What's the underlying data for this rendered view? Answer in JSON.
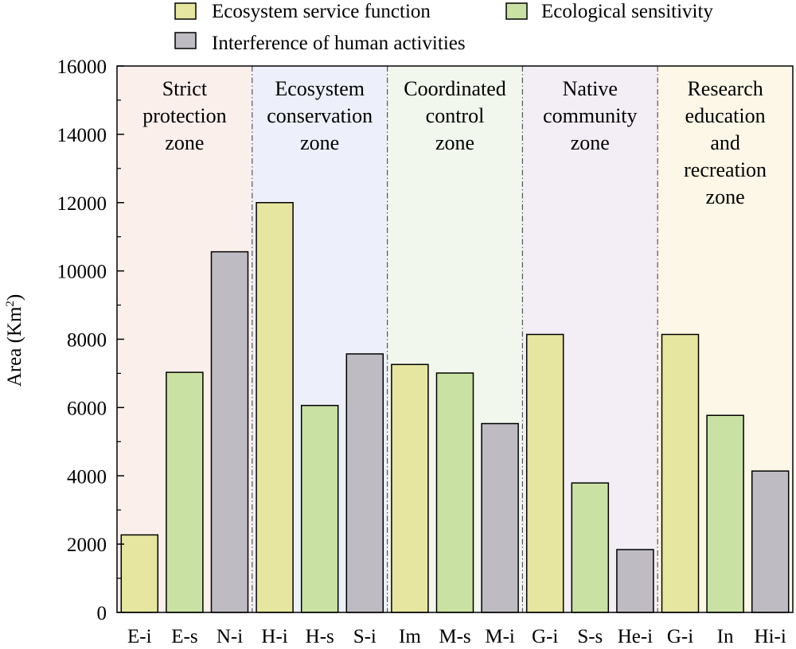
{
  "chart_data": {
    "type": "bar",
    "ylabel": "Area (Km²)",
    "ylabel_main": "Area (Km",
    "ylabel_sup": "2",
    "ylabel_end": ")",
    "ylim": [
      0,
      16000
    ],
    "yticks": [
      0,
      2000,
      4000,
      6000,
      8000,
      10000,
      12000,
      14000,
      16000
    ],
    "ytick_labels": [
      "0",
      "2000",
      "4000",
      "6000",
      "8000",
      "10000",
      "12000",
      "14000",
      "16000"
    ],
    "grid": false,
    "legend_position": "top",
    "series_colors": {
      "Ecosystem service function": "#e6e6a0",
      "Ecological sensitivity": "#c9e2a3",
      "Interference of human activities": "#bfbbc2"
    },
    "legend": [
      "Ecosystem service function",
      "Ecological sensitivity",
      "Interference of human activities"
    ],
    "categories": [
      "E-i",
      "E-s",
      "N-i",
      "H-i",
      "H-s",
      "S-i",
      "Im",
      "M-s",
      "M-i",
      "G-i",
      "S-s",
      "He-i",
      "G-i",
      "In",
      "Hi-i"
    ],
    "bars": [
      {
        "category": "E-i",
        "series": "Ecosystem service function",
        "value": 2270
      },
      {
        "category": "E-s",
        "series": "Ecological sensitivity",
        "value": 7030
      },
      {
        "category": "N-i",
        "series": "Interference of human activities",
        "value": 10560
      },
      {
        "category": "H-i",
        "series": "Ecosystem service function",
        "value": 12000
      },
      {
        "category": "H-s",
        "series": "Ecological sensitivity",
        "value": 6060
      },
      {
        "category": "S-i",
        "series": "Interference of human activities",
        "value": 7570
      },
      {
        "category": "Im",
        "series": "Ecosystem service function",
        "value": 7260
      },
      {
        "category": "M-s",
        "series": "Ecological sensitivity",
        "value": 7010
      },
      {
        "category": "M-i",
        "series": "Interference of human activities",
        "value": 5530
      },
      {
        "category": "G-i",
        "series": "Ecosystem service function",
        "value": 8140
      },
      {
        "category": "S-s",
        "series": "Ecological sensitivity",
        "value": 3790
      },
      {
        "category": "He-i",
        "series": "Interference of human activities",
        "value": 1840
      },
      {
        "category": "G-i",
        "series": "Ecosystem service function",
        "value": 8140
      },
      {
        "category": "In",
        "series": "Ecological sensitivity",
        "value": 5770
      },
      {
        "category": "Hi-i",
        "series": "Interference of human activities",
        "value": 4140
      }
    ],
    "zones": [
      {
        "label_lines": [
          "Strict",
          "protection",
          "zone"
        ],
        "first": 0,
        "last": 2,
        "color": "#fbefec"
      },
      {
        "label_lines": [
          "Ecosystem",
          "conservation",
          "zone"
        ],
        "first": 3,
        "last": 5,
        "color": "#edf0fa"
      },
      {
        "label_lines": [
          "Coordinated",
          "control",
          "zone"
        ],
        "first": 6,
        "last": 8,
        "color": "#f1f7ec"
      },
      {
        "label_lines": [
          "Native",
          "community",
          "zone"
        ],
        "first": 9,
        "last": 11,
        "color": "#f3eef6"
      },
      {
        "label_lines": [
          "Research",
          "education",
          "and",
          "recreation",
          "zone"
        ],
        "first": 12,
        "last": 14,
        "color": "#fdf7e7"
      }
    ]
  }
}
